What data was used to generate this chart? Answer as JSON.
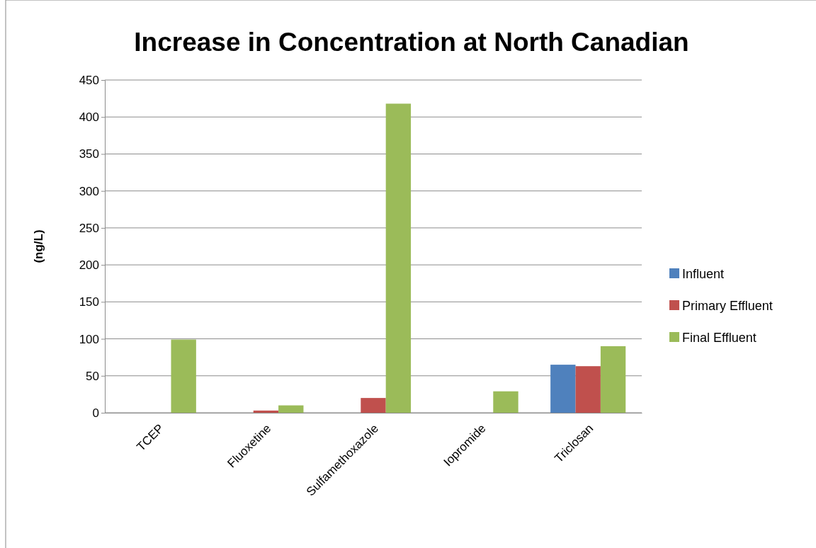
{
  "chart_data": {
    "type": "bar",
    "title": "Increase in Concentration at North Canadian",
    "ylabel": "(ng/L)",
    "categories": [
      "TCEP",
      "Fluoxetine",
      "Sulfamethoxazole",
      "Iopromide",
      "Triclosan"
    ],
    "series": [
      {
        "name": "Influent",
        "color": "#4f81bd",
        "values": [
          0,
          0,
          0,
          0,
          65
        ]
      },
      {
        "name": "Primary Effluent",
        "color": "#c0504d",
        "values": [
          0,
          3,
          20,
          0,
          63
        ]
      },
      {
        "name": "Final Effluent",
        "color": "#9bbb59",
        "values": [
          99,
          10,
          418,
          29,
          90
        ]
      }
    ],
    "ylim": [
      0,
      450
    ],
    "yticks": [
      0,
      50,
      100,
      150,
      200,
      250,
      300,
      350,
      400,
      450
    ],
    "grid": "y",
    "legend": "right"
  }
}
